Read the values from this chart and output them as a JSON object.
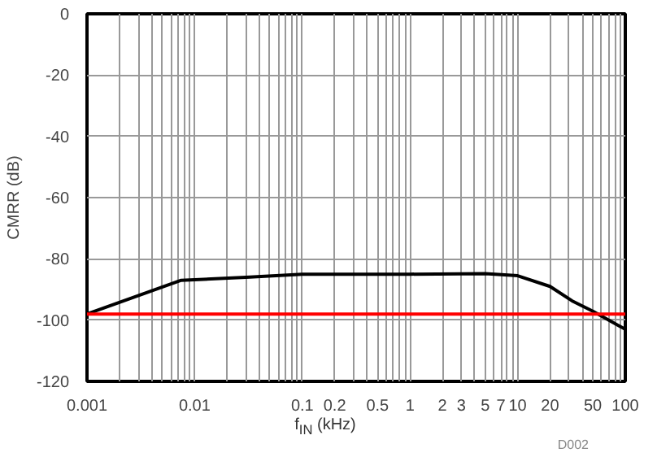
{
  "chart_data": {
    "type": "line",
    "xlabel": "f$_{IN}$ (kHz)",
    "ylabel": "CMRR (dB)",
    "log": "x",
    "grid": true,
    "marker": "none",
    "line_style": "solid",
    "xlim": [
      0.001,
      100
    ],
    "ylim": [
      -120,
      0
    ],
    "xticks": [
      0.001,
      {
        "value": 0.002,
        "label": null
      },
      {
        "value": 0.003,
        "label": null
      },
      {
        "value": 0.004,
        "label": null
      },
      {
        "value": 0.005,
        "label": null
      },
      {
        "value": 0.006,
        "label": null
      },
      {
        "value": 0.007,
        "label": null
      },
      {
        "value": 0.008,
        "label": null
      },
      {
        "value": 0.009,
        "label": null
      },
      0.01,
      {
        "value": 0.02,
        "label": null
      },
      {
        "value": 0.03,
        "label": null
      },
      {
        "value": 0.04,
        "label": null
      },
      {
        "value": 0.05,
        "label": null
      },
      {
        "value": 0.06,
        "label": null
      },
      {
        "value": 0.07,
        "label": null
      },
      {
        "value": 0.08,
        "label": null
      },
      {
        "value": 0.09,
        "label": null
      },
      0.1,
      0.2,
      {
        "value": 0.3,
        "label": null
      },
      {
        "value": 0.4,
        "label": null
      },
      0.5,
      {
        "value": 0.6,
        "label": null
      },
      {
        "value": 0.7,
        "label": null
      },
      {
        "value": 0.8,
        "label": null
      },
      {
        "value": 0.9,
        "label": null
      },
      1,
      2,
      3,
      {
        "value": 4,
        "label": null
      },
      5,
      {
        "value": 6,
        "label": null
      },
      7,
      {
        "value": 8,
        "label": null
      },
      {
        "value": 9,
        "label": null
      },
      10,
      20,
      {
        "value": 30,
        "label": null
      },
      {
        "value": 40,
        "label": null
      },
      50,
      {
        "value": 60,
        "label": null
      },
      {
        "value": 70,
        "label": null
      },
      {
        "value": 80,
        "label": null
      },
      {
        "value": 90,
        "label": null
      },
      100
    ],
    "yticks": [
      -120,
      -100,
      -80,
      -60,
      -40,
      -20,
      0
    ],
    "series": [
      {
        "color": "#000000",
        "x": [
          0.001,
          0.0075,
          0.03,
          0.1,
          1,
          5,
          10,
          20,
          32,
          50,
          100
        ],
        "values": [
          -98,
          -87,
          -86,
          -85,
          -85,
          -84.8,
          -85.5,
          -89,
          -93.7,
          -97.1,
          -103
        ]
      },
      {
        "color": "#ff0000",
        "x": [
          0.001,
          100
        ],
        "values": [
          -98,
          -98
        ]
      }
    ],
    "annotations": [
      "D002"
    ]
  }
}
